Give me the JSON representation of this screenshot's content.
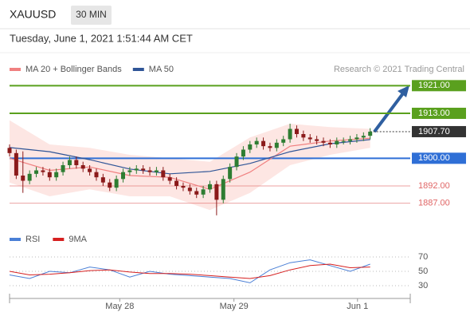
{
  "header": {
    "symbol": "XAUUSD",
    "interval": "30 MIN",
    "timestamp": "Tuesday, June 1, 2021 1:51:44 AM CET"
  },
  "chart_data": [
    {
      "type": "candlestick",
      "source": "Research © 2021 Trading Central",
      "x": [
        0,
        1,
        2,
        3,
        4,
        5,
        6,
        7,
        8,
        9,
        10,
        11,
        12,
        13,
        14,
        15,
        16,
        17,
        18,
        19,
        20,
        21,
        22,
        23,
        24,
        25,
        26,
        27,
        28,
        29,
        30,
        31,
        32,
        33,
        34,
        35,
        36,
        37,
        38,
        39,
        40,
        41,
        42,
        43,
        44,
        45,
        46,
        47,
        48,
        49,
        50,
        51,
        52,
        53,
        54
      ],
      "open": [
        1903.0,
        1901.5,
        1895.0,
        1893.5,
        1895.5,
        1896.5,
        1896.0,
        1894.5,
        1896.0,
        1898.0,
        1899.5,
        1898.0,
        1897.0,
        1896.0,
        1894.5,
        1893.0,
        1891.5,
        1894.0,
        1896.0,
        1896.5,
        1897.0,
        1896.5,
        1896.0,
        1896.5,
        1894.5,
        1893.5,
        1892.0,
        1891.5,
        1890.5,
        1889.5,
        1891.0,
        1892.5,
        1888.0,
        1894.0,
        1897.5,
        1900.5,
        1902.5,
        1904.0,
        1905.0,
        1903.5,
        1903.0,
        1904.5,
        1905.5,
        1908.5,
        1907.0,
        1906.0,
        1905.5,
        1905.0,
        1904.5,
        1904.0,
        1905.0,
        1905.0,
        1905.5,
        1906.0,
        1906.5
      ],
      "high": [
        1904.0,
        1902.5,
        1902.0,
        1896.5,
        1897.5,
        1897.5,
        1897.0,
        1897.0,
        1899.0,
        1900.5,
        1900.5,
        1899.0,
        1898.0,
        1897.0,
        1895.5,
        1894.0,
        1895.0,
        1897.0,
        1897.5,
        1898.0,
        1898.0,
        1897.5,
        1897.5,
        1897.5,
        1895.5,
        1894.5,
        1893.0,
        1892.5,
        1891.5,
        1892.0,
        1893.5,
        1893.5,
        1895.0,
        1898.5,
        1901.5,
        1903.5,
        1905.0,
        1906.0,
        1906.0,
        1904.5,
        1905.5,
        1906.5,
        1910.0,
        1909.5,
        1908.0,
        1907.0,
        1906.5,
        1906.0,
        1905.5,
        1906.0,
        1906.0,
        1906.5,
        1907.0,
        1907.5,
        1908.7
      ],
      "low": [
        1900.5,
        1894.0,
        1890.0,
        1892.5,
        1894.5,
        1895.0,
        1893.5,
        1893.5,
        1895.0,
        1897.0,
        1897.0,
        1896.0,
        1895.0,
        1893.5,
        1892.0,
        1890.5,
        1890.5,
        1893.0,
        1895.0,
        1895.5,
        1895.5,
        1895.0,
        1895.0,
        1893.5,
        1892.5,
        1891.0,
        1890.5,
        1889.5,
        1888.5,
        1888.5,
        1890.0,
        1883.5,
        1887.0,
        1893.0,
        1896.5,
        1899.5,
        1901.5,
        1903.0,
        1902.5,
        1902.0,
        1902.0,
        1903.5,
        1904.5,
        1906.0,
        1905.0,
        1904.5,
        1904.0,
        1903.5,
        1903.0,
        1903.0,
        1904.0,
        1904.0,
        1904.5,
        1905.0,
        1905.5
      ],
      "close": [
        1901.5,
        1895.0,
        1893.5,
        1895.5,
        1896.5,
        1896.0,
        1894.5,
        1896.0,
        1898.0,
        1899.5,
        1898.0,
        1897.0,
        1896.0,
        1894.5,
        1893.0,
        1891.5,
        1894.0,
        1896.0,
        1896.5,
        1897.0,
        1896.5,
        1896.0,
        1896.5,
        1894.5,
        1893.5,
        1892.0,
        1891.5,
        1890.5,
        1889.5,
        1891.0,
        1892.5,
        1888.0,
        1894.0,
        1897.5,
        1900.5,
        1902.5,
        1904.0,
        1905.0,
        1903.5,
        1903.0,
        1904.5,
        1905.5,
        1908.5,
        1907.0,
        1906.0,
        1905.5,
        1905.0,
        1904.5,
        1904.0,
        1905.0,
        1905.0,
        1905.5,
        1906.0,
        1906.5,
        1907.7
      ],
      "up_color": "#2e7d32",
      "down_color": "#8b1a1a",
      "overlays": [
        {
          "name": "MA 20 + Bollinger Bands",
          "color": "#f08080",
          "band_color": "#fde0dc",
          "x": [
            0,
            6,
            12,
            18,
            24,
            30,
            36,
            42,
            48,
            54
          ],
          "values": [
            1900.0,
            1896.5,
            1897.5,
            1895.0,
            1894.5,
            1891.0,
            1896.0,
            1903.5,
            1905.0,
            1905.8
          ],
          "upper": [
            1911.0,
            1904.0,
            1903.0,
            1901.0,
            1900.0,
            1899.0,
            1906.0,
            1910.0,
            1909.0,
            1908.5
          ],
          "lower": [
            1893.0,
            1889.0,
            1891.0,
            1889.0,
            1889.0,
            1885.0,
            1890.0,
            1898.0,
            1901.0,
            1903.0
          ]
        },
        {
          "name": "MA 50",
          "color": "#2f5597",
          "x": [
            0,
            6,
            12,
            18,
            24,
            30,
            36,
            42,
            48,
            54
          ],
          "values": [
            1903.1,
            1901.9,
            1899.6,
            1896.9,
            1895.5,
            1896.2,
            1898.5,
            1901.9,
            1904.2,
            1905.4
          ]
        }
      ],
      "levels": [
        {
          "value": 1921,
          "label": "1921.00",
          "color": "#5aa01e",
          "boxed": true
        },
        {
          "value": 1913,
          "label": "1913.00",
          "color": "#5aa01e",
          "boxed": true
        },
        {
          "value": 1907.7,
          "label": "1907.70",
          "color": "#333333",
          "boxed": true
        },
        {
          "value": 1900,
          "label": "1900.00",
          "color": "#2f6fd6",
          "boxed": true
        },
        {
          "value": 1892,
          "label": "1892.00",
          "color": "#e06666",
          "boxed": false
        },
        {
          "value": 1887,
          "label": "1887.00",
          "color": "#e06666",
          "boxed": false
        }
      ],
      "xlim": [
        0,
        60
      ],
      "ylim": [
        1883,
        1925
      ],
      "xticks": [
        {
          "value": 16.5,
          "label": "May 28"
        },
        {
          "value": 33.6,
          "label": "May 29"
        },
        {
          "value": 52.1,
          "label": "Jun 1"
        }
      ]
    },
    {
      "type": "line",
      "xlim": [
        0,
        60
      ],
      "ylim": [
        20,
        80
      ],
      "yticks": [
        30,
        50,
        70
      ],
      "series": [
        {
          "name": "RSI",
          "color": "#4a7fd6",
          "x": [
            0,
            3,
            6,
            9,
            12,
            15,
            18,
            21,
            24,
            27,
            30,
            33,
            36,
            39,
            42,
            45,
            48,
            51,
            54
          ],
          "values": [
            45,
            40,
            50,
            48,
            56,
            52,
            42,
            50,
            46,
            44,
            42,
            40,
            34,
            52,
            62,
            66,
            58,
            50,
            60
          ]
        },
        {
          "name": "9MA",
          "color": "#d62020",
          "x": [
            0,
            3,
            6,
            9,
            12,
            15,
            18,
            21,
            24,
            27,
            30,
            33,
            36,
            39,
            42,
            45,
            48,
            51,
            54
          ],
          "values": [
            50,
            45,
            46,
            48,
            51,
            52,
            49,
            47,
            47,
            46,
            44,
            42,
            40,
            44,
            52,
            58,
            60,
            55,
            56
          ]
        }
      ]
    }
  ]
}
